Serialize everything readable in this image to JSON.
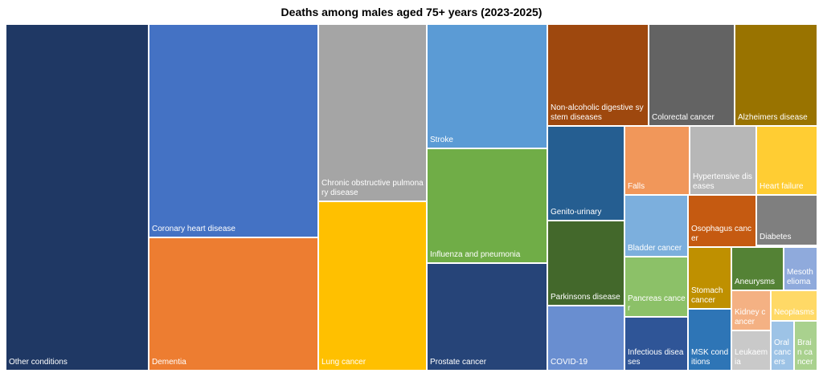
{
  "chart_data": {
    "type": "treemap",
    "title": "Deaths among males aged 75+ years (2023-2025)",
    "nodes": [
      {
        "label": "Other conditions",
        "color": "#1f3864"
      },
      {
        "label": "Coronary heart disease",
        "color": "#4472c4"
      },
      {
        "label": "Dementia",
        "color": "#ed7d31"
      },
      {
        "label": "Chronic obstructive pulmonary disease",
        "color": "#a5a5a5"
      },
      {
        "label": "Lung cancer",
        "color": "#ffc000"
      },
      {
        "label": "Stroke",
        "color": "#5b9bd5"
      },
      {
        "label": "Influenza and pneumonia",
        "color": "#70ad47"
      },
      {
        "label": "Prostate cancer",
        "color": "#264478"
      },
      {
        "label": "Non-alcoholic digestive system diseases",
        "color": "#9e480e"
      },
      {
        "label": "Colorectal cancer",
        "color": "#636363"
      },
      {
        "label": "Alzheimers disease",
        "color": "#997300"
      },
      {
        "label": "Genito-urinary",
        "color": "#255e91"
      },
      {
        "label": "Parkinsons disease",
        "color": "#43682b"
      },
      {
        "label": "COVID-19",
        "color": "#698ed0"
      },
      {
        "label": "Falls",
        "color": "#f1975a"
      },
      {
        "label": "Hypertensive diseases",
        "color": "#b7b7b7"
      },
      {
        "label": "Heart failure",
        "color": "#ffcd33"
      },
      {
        "label": "Bladder cancer",
        "color": "#7cafdd"
      },
      {
        "label": "Osophagus cancer",
        "color": "#c55a11"
      },
      {
        "label": "Diabetes",
        "color": "#7f7f7f"
      },
      {
        "label": "Pancreas cancer",
        "color": "#8cc168"
      },
      {
        "label": "Infectious diseases",
        "color": "#2f5597"
      },
      {
        "label": "Stomach cancer",
        "color": "#bf9000"
      },
      {
        "label": "MSK conditions",
        "color": "#2e75b6"
      },
      {
        "label": "Aneurysms",
        "color": "#548235"
      },
      {
        "label": "Mesothelioma",
        "color": "#8faadc"
      },
      {
        "label": "Kidney cancer",
        "color": "#f4b183"
      },
      {
        "label": "Neoplasms",
        "color": "#ffd966"
      },
      {
        "label": "Leukaemia",
        "color": "#c9c9c9"
      },
      {
        "label": "Oral cancers",
        "color": "#9dc3e6"
      },
      {
        "label": "Brain cancer",
        "color": "#a9d18e"
      }
    ]
  }
}
